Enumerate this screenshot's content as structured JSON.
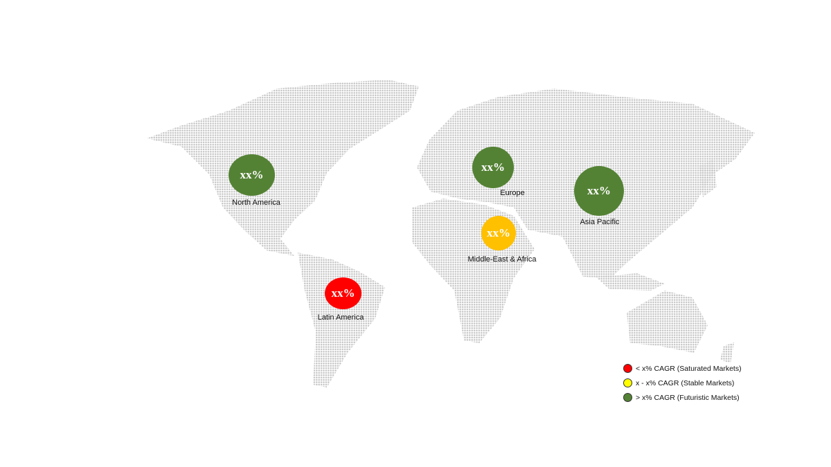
{
  "regions": [
    {
      "name": "North America",
      "value": "xx%",
      "color": "#548235"
    },
    {
      "name": "Europe",
      "value": "xx%",
      "color": "#548235"
    },
    {
      "name": "Asia Pacific",
      "value": "xx%",
      "color": "#548235"
    },
    {
      "name": "Middle-East & Africa",
      "value": "xx%",
      "color": "#ffc000"
    },
    {
      "name": "Latin America",
      "value": "xx%",
      "color": "#ff0000"
    }
  ],
  "legend": [
    {
      "label": "< x% CAGR (Saturated Markets)",
      "color": "#ff0000"
    },
    {
      "label": "x - x% CAGR (Stable Markets)",
      "color": "#ffff00"
    },
    {
      "label": "> x% CAGR (Futuristic Markets)",
      "color": "#548235"
    }
  ],
  "map": {
    "style": "dotted world map",
    "dot_color": "#c4c4c4"
  }
}
